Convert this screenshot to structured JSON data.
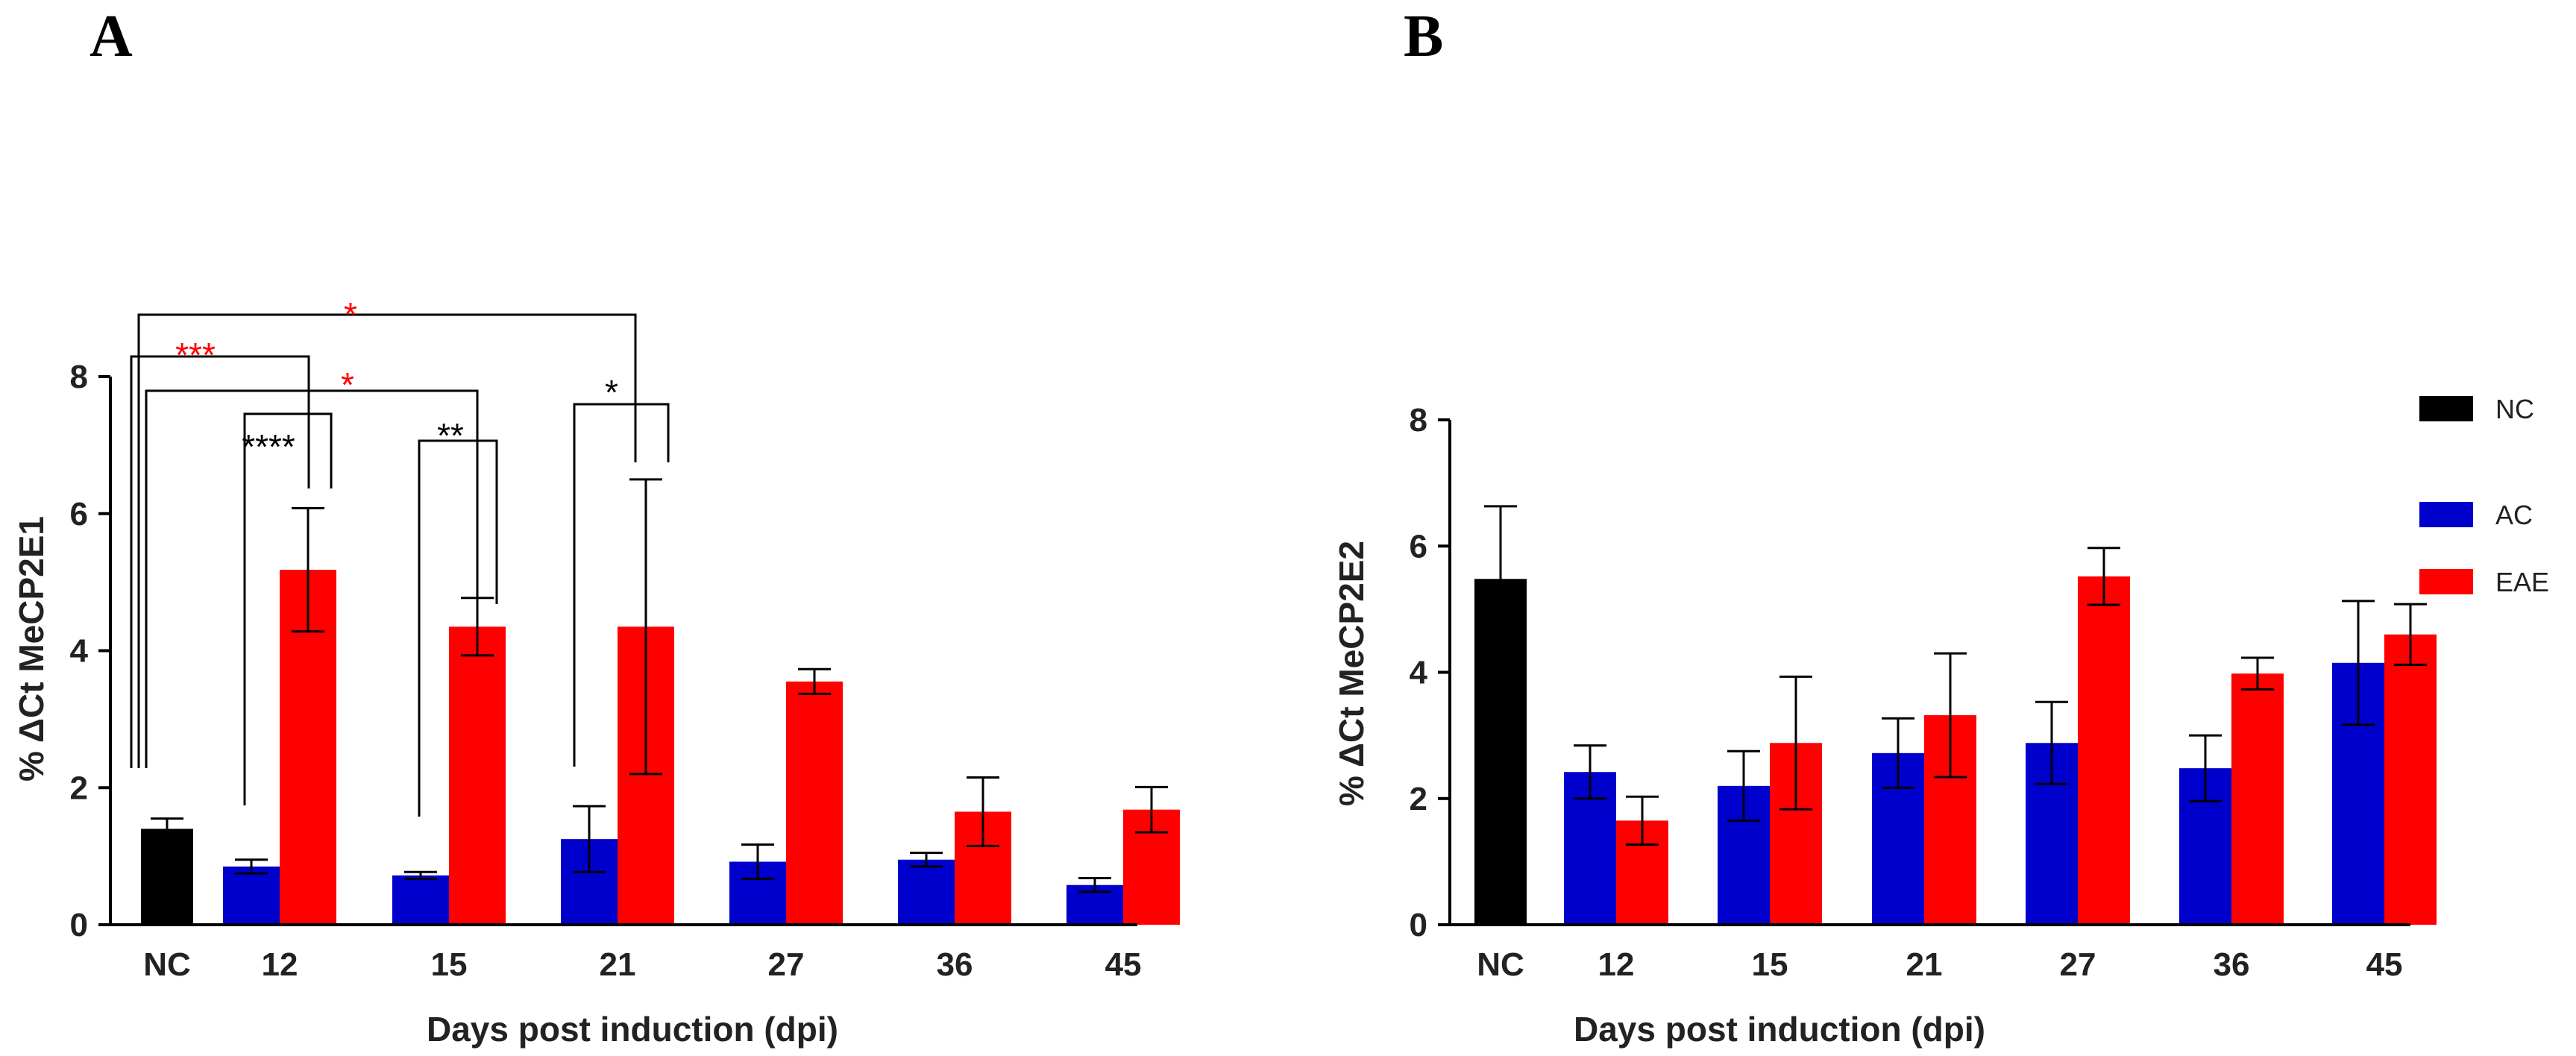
{
  "colors": {
    "NC": "#000000",
    "AC": "#0000cc",
    "EAE": "#ff0000",
    "sig_red": "#ff0000",
    "sig_black": "#000000"
  },
  "legend": {
    "items": [
      "NC",
      "AC",
      "EAE"
    ]
  },
  "chart_data": [
    {
      "type": "bar",
      "panel": "A",
      "xlabel": "Days post induction (dpi)",
      "ylabel": "% ΔCt MeCP2E1",
      "ylim": [
        0,
        8
      ],
      "yticks": [
        0,
        2,
        4,
        6,
        8
      ],
      "categories": [
        "NC",
        "12",
        "15",
        "21",
        "27",
        "36",
        "45"
      ],
      "series": [
        {
          "name": "NC",
          "values": [
            1.4,
            null,
            null,
            null,
            null,
            null,
            null
          ],
          "errors": [
            0.15,
            null,
            null,
            null,
            null,
            null,
            null
          ]
        },
        {
          "name": "AC",
          "values": [
            null,
            0.85,
            0.72,
            1.25,
            0.92,
            0.95,
            0.58
          ],
          "errors": [
            null,
            0.1,
            0.05,
            0.48,
            0.25,
            0.1,
            0.1
          ]
        },
        {
          "name": "EAE",
          "values": [
            null,
            5.18,
            4.35,
            4.35,
            3.55,
            1.65,
            1.68
          ],
          "errors": [
            null,
            0.9,
            0.42,
            2.15,
            0.18,
            0.5,
            0.33
          ]
        }
      ],
      "annotations": [
        {
          "text": "*",
          "color": "red"
        },
        {
          "text": "***",
          "color": "red"
        },
        {
          "text": "*",
          "color": "red"
        },
        {
          "text": "****",
          "color": "black"
        },
        {
          "text": "**",
          "color": "black"
        },
        {
          "text": "*",
          "color": "black"
        }
      ]
    },
    {
      "type": "bar",
      "panel": "B",
      "xlabel": "Days post induction (dpi)",
      "ylabel": "% ΔCt MeCP2E2",
      "ylim": [
        0,
        8
      ],
      "yticks": [
        0,
        2,
        4,
        6,
        8
      ],
      "categories": [
        "NC",
        "12",
        "15",
        "21",
        "27",
        "36",
        "45"
      ],
      "series": [
        {
          "name": "NC",
          "values": [
            5.48,
            null,
            null,
            null,
            null,
            null,
            null
          ],
          "errors": [
            1.15,
            null,
            null,
            null,
            null,
            null,
            null
          ]
        },
        {
          "name": "AC",
          "values": [
            null,
            2.42,
            2.2,
            2.72,
            2.88,
            2.48,
            4.15
          ],
          "errors": [
            null,
            0.42,
            0.55,
            0.55,
            0.65,
            0.52,
            0.98
          ]
        },
        {
          "name": "EAE",
          "values": [
            null,
            1.65,
            2.88,
            3.32,
            5.52,
            3.98,
            4.6
          ],
          "errors": [
            null,
            0.38,
            1.05,
            0.98,
            0.45,
            0.25,
            0.48
          ]
        }
      ]
    }
  ]
}
